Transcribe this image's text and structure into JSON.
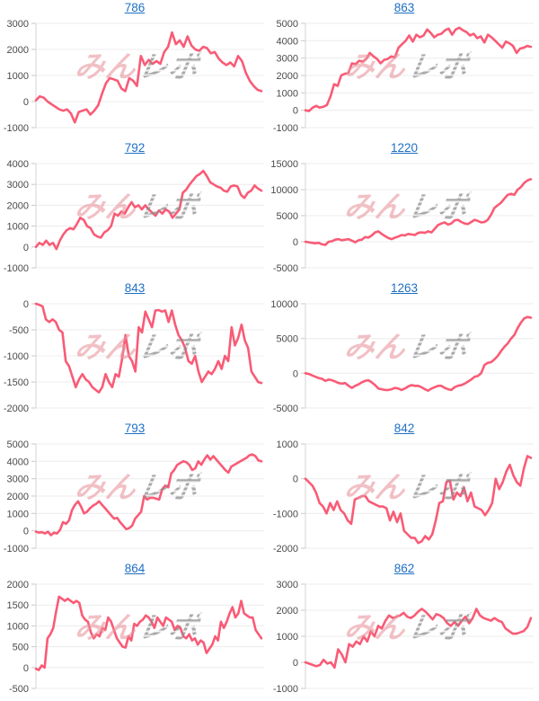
{
  "watermark": {
    "pink_text": "みん",
    "gray_text": "レポ"
  },
  "colors": {
    "line": "#f95b76",
    "grid": "#ececec",
    "axis": "#d5d5d5",
    "tick_mark": "#c9c9c9",
    "tick_label": "#4a4a4a",
    "link": "#1f6fc4"
  },
  "chart_data": [
    {
      "type": "line",
      "title": "786",
      "xlabel": "",
      "ylabel": "",
      "ylim": [
        -1000,
        3000
      ],
      "yticks": [
        3000,
        2000,
        1000,
        0,
        -1000
      ],
      "values": [
        50,
        200,
        150,
        0,
        -100,
        -200,
        -300,
        -350,
        -300,
        -450,
        -800,
        -400,
        -350,
        -300,
        -500,
        -350,
        -150,
        300,
        700,
        900,
        850,
        800,
        500,
        400,
        900,
        800,
        600,
        1750,
        1400,
        1600,
        1450,
        1550,
        1450,
        1900,
        2100,
        2650,
        2200,
        2350,
        2100,
        2500,
        2150,
        2000,
        1950,
        2100,
        2050,
        1850,
        1900,
        1650,
        1500,
        1400,
        1500,
        1350,
        1750,
        1550,
        1100,
        800,
        600,
        450,
        400
      ]
    },
    {
      "type": "line",
      "title": "863",
      "xlabel": "",
      "ylabel": "",
      "ylim": [
        -1000,
        5000
      ],
      "yticks": [
        5000,
        4000,
        3000,
        2000,
        1000,
        0,
        -1000
      ],
      "values": [
        0,
        -50,
        150,
        250,
        150,
        200,
        300,
        800,
        1500,
        1400,
        2000,
        2100,
        2150,
        2700,
        2650,
        2850,
        2800,
        2950,
        3300,
        3100,
        2950,
        2700,
        2900,
        2950,
        3100,
        3050,
        3600,
        3800,
        4000,
        4300,
        3950,
        4350,
        4200,
        4300,
        4650,
        4450,
        4200,
        4350,
        4400,
        4600,
        4700,
        4350,
        4650,
        4750,
        4600,
        4500,
        4300,
        4400,
        4150,
        4250,
        3900,
        4350,
        4200,
        4000,
        3800,
        3600,
        3950,
        3850,
        3700,
        3300,
        3550,
        3600,
        3700,
        3650
      ]
    },
    {
      "type": "line",
      "title": "792",
      "xlabel": "",
      "ylabel": "",
      "ylim": [
        -1000,
        4000
      ],
      "yticks": [
        4000,
        3000,
        2000,
        1000,
        0,
        -1000
      ],
      "values": [
        0,
        200,
        100,
        300,
        100,
        200,
        -100,
        300,
        600,
        800,
        900,
        850,
        1100,
        1400,
        1300,
        1000,
        900,
        600,
        500,
        450,
        700,
        800,
        1000,
        1600,
        1500,
        1700,
        1600,
        1900,
        2150,
        1900,
        2000,
        1800,
        2000,
        1800,
        1650,
        1500,
        1750,
        1600,
        1800,
        1700,
        1400,
        1600,
        1800,
        2600,
        2750,
        3000,
        3200,
        3400,
        3500,
        3650,
        3400,
        3100,
        3000,
        2900,
        2850,
        2700,
        2650,
        2900,
        2950,
        2900,
        2500,
        2350,
        2600,
        2700,
        2950,
        2800,
        2700
      ]
    },
    {
      "type": "line",
      "title": "1220",
      "xlabel": "",
      "ylabel": "",
      "ylim": [
        -5000,
        15000
      ],
      "yticks": [
        15000,
        10000,
        5000,
        0,
        -5000
      ],
      "values": [
        0,
        -100,
        -200,
        -300,
        -200,
        -500,
        -600,
        0,
        100,
        400,
        500,
        300,
        400,
        500,
        200,
        -100,
        300,
        400,
        900,
        800,
        1200,
        1800,
        2000,
        1500,
        1100,
        700,
        500,
        800,
        1000,
        1300,
        1200,
        1500,
        1400,
        1300,
        1700,
        1800,
        1700,
        2000,
        1800,
        2500,
        3200,
        3500,
        3700,
        3300,
        3500,
        4100,
        4200,
        3800,
        3500,
        3400,
        3800,
        4200,
        4000,
        3700,
        3800,
        4200,
        5200,
        6500,
        7000,
        7500,
        8300,
        9000,
        9200,
        9000,
        10000,
        10500,
        11300,
        11800,
        12000
      ]
    },
    {
      "type": "line",
      "title": "843",
      "xlabel": "",
      "ylabel": "",
      "ylim": [
        -2000,
        0
      ],
      "yticks": [
        0,
        -500,
        -1000,
        -1500,
        -2000
      ],
      "values": [
        0,
        -20,
        -50,
        -300,
        -350,
        -300,
        -350,
        -500,
        -550,
        -1100,
        -1200,
        -1400,
        -1600,
        -1450,
        -1350,
        -1450,
        -1500,
        -1600,
        -1650,
        -1700,
        -1600,
        -1350,
        -1500,
        -1600,
        -1350,
        -1400,
        -1050,
        -600,
        -1000,
        -1100,
        -1300,
        -450,
        -550,
        -150,
        -300,
        -450,
        -130,
        -120,
        -150,
        -130,
        -350,
        -130,
        -400,
        -600,
        -700,
        -850,
        -1100,
        -1150,
        -1000,
        -1300,
        -1500,
        -1400,
        -1300,
        -1350,
        -1250,
        -1100,
        -1250,
        -1000,
        -1100,
        -450,
        -800,
        -650,
        -400,
        -700,
        -850,
        -1300,
        -1400,
        -1500,
        -1520
      ]
    },
    {
      "type": "line",
      "title": "1263",
      "xlabel": "",
      "ylabel": "",
      "ylim": [
        -5000,
        10000
      ],
      "yticks": [
        10000,
        5000,
        0,
        -5000
      ],
      "values": [
        0,
        -100,
        -300,
        -500,
        -700,
        -800,
        -1100,
        -900,
        -1000,
        -1200,
        -1400,
        -1500,
        -1400,
        -1800,
        -2100,
        -1800,
        -1600,
        -1300,
        -1100,
        -1000,
        -1300,
        -1700,
        -2200,
        -2300,
        -2400,
        -2400,
        -2300,
        -2100,
        -2200,
        -2400,
        -2200,
        -1900,
        -1700,
        -1800,
        -1800,
        -2000,
        -2300,
        -2500,
        -2200,
        -2000,
        -1800,
        -1800,
        -2100,
        -2300,
        -2400,
        -2000,
        -1800,
        -1700,
        -1500,
        -1200,
        -900,
        -500,
        -400,
        0,
        1200,
        1500,
        1600,
        2000,
        2500,
        3200,
        3800,
        4300,
        5000,
        5500,
        6500,
        7300,
        7900,
        8100,
        8000
      ]
    },
    {
      "type": "line",
      "title": "793",
      "xlabel": "",
      "ylabel": "",
      "ylim": [
        -1000,
        5000
      ],
      "yticks": [
        5000,
        4000,
        3000,
        2000,
        1000,
        0,
        -1000
      ],
      "values": [
        -50,
        -100,
        -80,
        -150,
        -50,
        -250,
        -100,
        -150,
        50,
        500,
        400,
        600,
        1200,
        1500,
        1700,
        1400,
        1000,
        1100,
        1300,
        1450,
        1550,
        1700,
        1500,
        1300,
        1100,
        900,
        700,
        750,
        500,
        300,
        100,
        150,
        300,
        700,
        900,
        1100,
        2000,
        1800,
        1900,
        1900,
        1850,
        1800,
        2400,
        2600,
        2500,
        3300,
        3500,
        3800,
        3900,
        4000,
        3950,
        3800,
        3500,
        3600,
        4000,
        3800,
        4100,
        4350,
        4100,
        4300,
        4100,
        3900,
        3700,
        3500,
        3350,
        3700,
        3800,
        3900,
        4000,
        4100,
        4200,
        4350,
        4400,
        4300,
        4050,
        4000
      ]
    },
    {
      "type": "line",
      "title": "842",
      "xlabel": "",
      "ylabel": "",
      "ylim": [
        -2000,
        1000
      ],
      "yticks": [
        1000,
        0,
        -1000,
        -2000
      ],
      "values": [
        0,
        -100,
        -200,
        -400,
        -700,
        -800,
        -1000,
        -700,
        -900,
        -650,
        -900,
        -1000,
        -1200,
        -1300,
        -600,
        -550,
        -500,
        -500,
        -650,
        -700,
        -750,
        -800,
        -800,
        -850,
        -1200,
        -950,
        -1250,
        -1000,
        -1500,
        -1600,
        -1700,
        -1700,
        -1850,
        -1800,
        -1650,
        -1750,
        -1600,
        -1200,
        -700,
        -650,
        -100,
        -50,
        -600,
        -400,
        -500,
        -250,
        -650,
        -400,
        -800,
        -850,
        -900,
        -1050,
        -900,
        -700,
        0,
        -300,
        -100,
        200,
        400,
        100,
        -100,
        -200,
        300,
        650,
        600
      ]
    },
    {
      "type": "line",
      "title": "864",
      "xlabel": "",
      "ylabel": "",
      "ylim": [
        -500,
        2000
      ],
      "yticks": [
        2000,
        1500,
        1000,
        500,
        0,
        -500
      ],
      "values": [
        -30,
        -60,
        50,
        0,
        700,
        800,
        950,
        1350,
        1700,
        1650,
        1600,
        1650,
        1600,
        1550,
        1600,
        1550,
        1250,
        1150,
        1100,
        850,
        700,
        800,
        750,
        950,
        900,
        1200,
        1100,
        900,
        700,
        600,
        500,
        480,
        750,
        650,
        1050,
        1000,
        1100,
        1150,
        1250,
        1200,
        1100,
        950,
        1200,
        1100,
        1000,
        1200,
        1150,
        1100,
        900,
        1000,
        950,
        750,
        700,
        800,
        650,
        700,
        550,
        650,
        600,
        350,
        450,
        550,
        750,
        650,
        1100,
        950,
        1100,
        1300,
        1450,
        1200,
        1300,
        1600,
        1300,
        1250,
        1200,
        1200,
        900,
        800,
        700
      ]
    },
    {
      "type": "line",
      "title": "862",
      "xlabel": "",
      "ylabel": "",
      "ylim": [
        -1000,
        3000
      ],
      "yticks": [
        3000,
        2000,
        1000,
        0,
        -1000
      ],
      "values": [
        0,
        -50,
        -100,
        -150,
        -100,
        100,
        -50,
        0,
        -200,
        500,
        300,
        0,
        700,
        600,
        800,
        700,
        1000,
        800,
        1200,
        1000,
        1400,
        1300,
        1600,
        1800,
        1700,
        1750,
        1800,
        1900,
        1750,
        1700,
        1800,
        1950,
        2050,
        1950,
        1800,
        1650,
        1850,
        1800,
        1700,
        1500,
        1400,
        1550,
        1400,
        1600,
        1750,
        1500,
        1700,
        2050,
        1800,
        1700,
        1650,
        1600,
        1700,
        1600,
        1550,
        1300,
        1200,
        1100,
        1100,
        1150,
        1200,
        1350,
        1700
      ]
    }
  ]
}
